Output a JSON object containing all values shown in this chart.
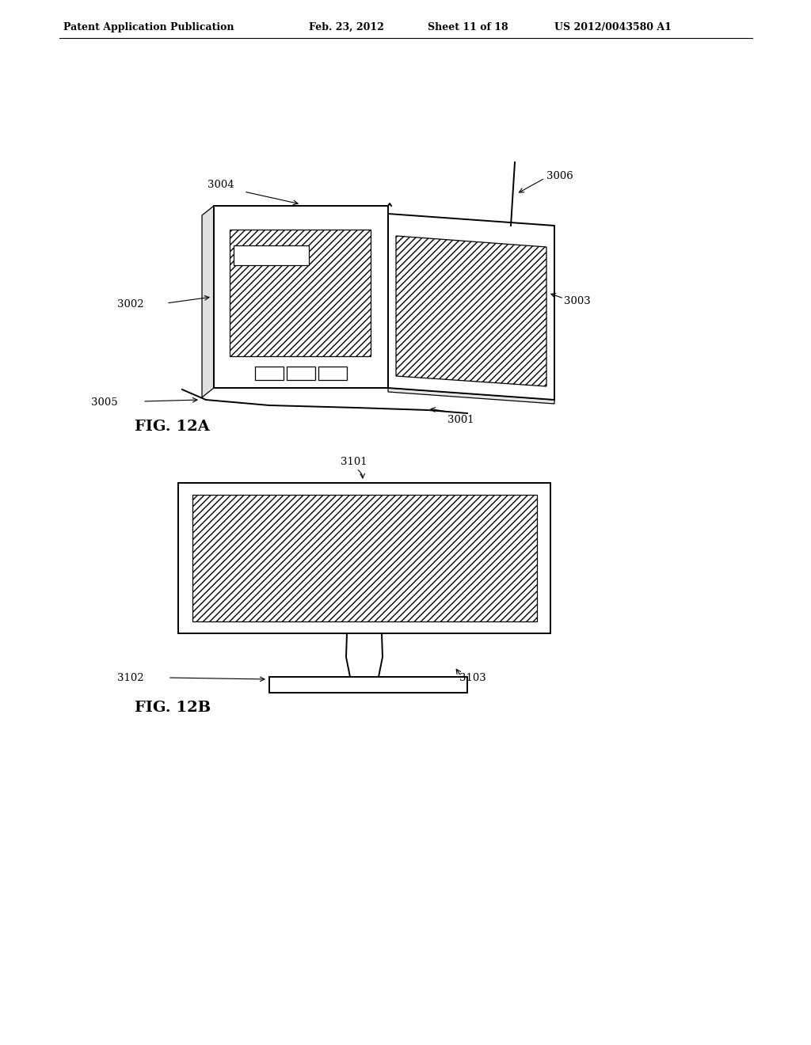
{
  "bg_color": "#ffffff",
  "header_text": "Patent Application Publication",
  "header_date": "Feb. 23, 2012",
  "header_sheet": "Sheet 11 of 18",
  "header_patent": "US 2012/0043580 A1",
  "fig_a_label": "FIG. 12A",
  "fig_b_label": "FIG. 12B",
  "label_fontsize": 9.5,
  "fig_label_fontsize": 14
}
